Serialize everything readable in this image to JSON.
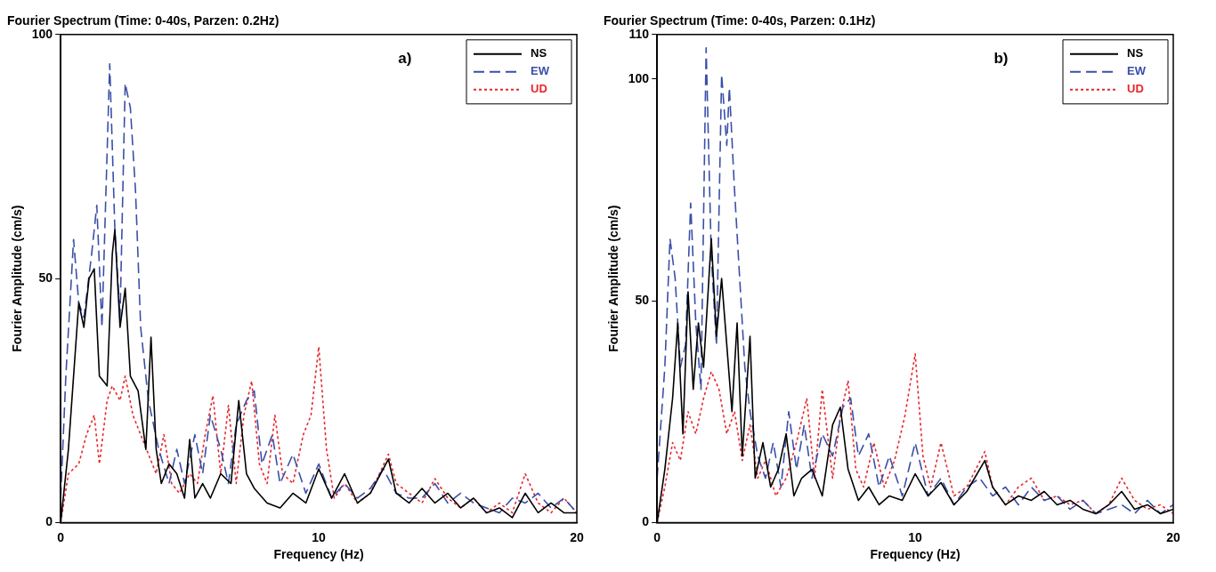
{
  "chart_data": [
    {
      "type": "line",
      "title": "Fourier Spectrum (Time: 0-40s, Parzen: 0.2Hz)",
      "xlabel": "Frequency (Hz)",
      "ylabel": "Fourier Amplitude (cm/s)",
      "annotations": [
        "a)"
      ],
      "xlim": [
        0,
        20
      ],
      "xticks": [
        0,
        10,
        20
      ],
      "ylim": [
        0,
        100
      ],
      "yticks": [
        0,
        50,
        100
      ],
      "grid": false,
      "legend": "top right",
      "marker": "none",
      "series": [
        {
          "name": "NS",
          "color": "#000000",
          "line_style": "solid",
          "x": [
            0,
            0.3,
            0.7,
            0.9,
            1.1,
            1.3,
            1.5,
            1.8,
            2.0,
            2.1,
            2.3,
            2.5,
            2.7,
            3.0,
            3.3,
            3.5,
            3.7,
            3.9,
            4.2,
            4.5,
            4.8,
            5.0,
            5.2,
            5.5,
            5.8,
            6.2,
            6.6,
            6.9,
            7.2,
            7.5,
            8,
            8.5,
            9,
            9.5,
            10,
            10.5,
            11,
            11.5,
            12,
            12.7,
            13,
            13.5,
            14,
            14.5,
            15,
            15.5,
            16,
            16.5,
            17,
            17.5,
            18,
            18.5,
            19,
            19.5,
            20
          ],
          "values": [
            0,
            15,
            45,
            40,
            50,
            52,
            30,
            28,
            55,
            60,
            40,
            48,
            30,
            27,
            15,
            38,
            15,
            8,
            12,
            10,
            5,
            17,
            5,
            8,
            5,
            10,
            8,
            25,
            10,
            7,
            4,
            3,
            6,
            4,
            11,
            5,
            10,
            4,
            6,
            13,
            6,
            4,
            7,
            4,
            6,
            3,
            5,
            2,
            3,
            1,
            6,
            2,
            4,
            2,
            2
          ]
        },
        {
          "name": "EW",
          "color": "#3a4fa8",
          "line_style": "dashed",
          "x": [
            0,
            0.2,
            0.5,
            0.7,
            0.9,
            1.2,
            1.4,
            1.6,
            1.9,
            2.1,
            2.3,
            2.5,
            2.7,
            2.9,
            3.1,
            3.4,
            3.6,
            3.8,
            4.2,
            4.5,
            4.8,
            5.2,
            5.5,
            5.8,
            6.2,
            6.5,
            6.8,
            7.2,
            7.5,
            7.8,
            8.2,
            8.5,
            9,
            9.5,
            10,
            10.5,
            11,
            11.5,
            12,
            12.5,
            13,
            13.5,
            14,
            14.5,
            15,
            15.5,
            16,
            16.5,
            17,
            17.5,
            18,
            18.5,
            19,
            19.5,
            20
          ],
          "values": [
            5,
            30,
            58,
            45,
            42,
            55,
            65,
            40,
            94,
            60,
            42,
            90,
            85,
            68,
            40,
            25,
            20,
            15,
            8,
            15,
            8,
            18,
            10,
            22,
            15,
            8,
            20,
            25,
            27,
            12,
            18,
            8,
            14,
            6,
            12,
            5,
            8,
            5,
            7,
            11,
            6,
            5,
            5,
            8,
            4,
            6,
            4,
            3,
            2,
            5,
            4,
            6,
            3,
            5,
            2
          ]
        },
        {
          "name": "UD",
          "color": "#e8262a",
          "line_style": "dotted",
          "x": [
            0,
            0.3,
            0.7,
            1.0,
            1.3,
            1.5,
            1.8,
            2.0,
            2.3,
            2.5,
            2.8,
            3.1,
            3.4,
            3.7,
            4.0,
            4.3,
            4.6,
            5.0,
            5.3,
            5.6,
            5.9,
            6.2,
            6.5,
            6.8,
            7.1,
            7.4,
            7.7,
            8.0,
            8.3,
            8.6,
            9.0,
            9.4,
            9.7,
            10.0,
            10.3,
            10.6,
            11,
            11.5,
            12,
            12.7,
            13,
            13.5,
            14,
            14.5,
            15,
            15.5,
            16,
            16.5,
            17,
            17.5,
            18,
            18.5,
            19,
            19.5,
            20
          ],
          "values": [
            0,
            10,
            12,
            18,
            22,
            12,
            25,
            28,
            25,
            30,
            22,
            18,
            14,
            10,
            18,
            8,
            6,
            10,
            8,
            18,
            26,
            10,
            24,
            8,
            22,
            29,
            12,
            8,
            22,
            10,
            8,
            18,
            22,
            36,
            15,
            5,
            8,
            4,
            6,
            14,
            8,
            6,
            4,
            9,
            5,
            3,
            5,
            2,
            4,
            2,
            10,
            4,
            2,
            5,
            2
          ]
        }
      ]
    },
    {
      "type": "line",
      "title": "Fourier Spectrum (Time: 0-40s, Parzen: 0.1Hz)",
      "xlabel": "Frequency (Hz)",
      "ylabel": "Fourier Amplitude (cm/s)",
      "annotations": [
        "b)"
      ],
      "xlim": [
        0,
        20
      ],
      "xticks": [
        0,
        10,
        20
      ],
      "ylim": [
        0,
        110
      ],
      "yticks": [
        0,
        50,
        100,
        110
      ],
      "grid": false,
      "legend": "top right",
      "marker": "none",
      "series": [
        {
          "name": "NS",
          "color": "#000000",
          "line_style": "solid",
          "x": [
            0,
            0.3,
            0.6,
            0.8,
            1.0,
            1.2,
            1.4,
            1.6,
            1.8,
            2.1,
            2.3,
            2.5,
            2.7,
            2.9,
            3.1,
            3.3,
            3.6,
            3.8,
            4.1,
            4.4,
            4.7,
            5.0,
            5.3,
            5.6,
            6.0,
            6.4,
            6.8,
            7.1,
            7.4,
            7.8,
            8.2,
            8.6,
            9,
            9.5,
            10,
            10.5,
            11,
            11.5,
            12,
            12.7,
            13,
            13.5,
            14,
            14.5,
            15,
            15.5,
            16,
            16.5,
            17,
            17.5,
            18,
            18.5,
            19,
            19.5,
            20
          ],
          "values": [
            0,
            12,
            28,
            45,
            20,
            52,
            30,
            45,
            35,
            64,
            42,
            55,
            40,
            25,
            45,
            15,
            42,
            10,
            18,
            8,
            12,
            20,
            6,
            10,
            12,
            6,
            22,
            26,
            12,
            5,
            8,
            4,
            6,
            5,
            11,
            6,
            9,
            4,
            7,
            14,
            8,
            4,
            6,
            5,
            7,
            4,
            5,
            3,
            2,
            4,
            7,
            3,
            4,
            2,
            3
          ]
        },
        {
          "name": "EW",
          "color": "#3a4fa8",
          "line_style": "dashed",
          "x": [
            0,
            0.3,
            0.5,
            0.7,
            0.9,
            1.1,
            1.3,
            1.5,
            1.7,
            1.9,
            2.1,
            2.3,
            2.5,
            2.7,
            2.8,
            3.0,
            3.2,
            3.4,
            3.6,
            3.9,
            4.2,
            4.5,
            4.8,
            5.1,
            5.4,
            5.7,
            6.0,
            6.4,
            6.8,
            7.2,
            7.5,
            7.8,
            8.2,
            8.6,
            9,
            9.5,
            10,
            10.5,
            11,
            11.5,
            12,
            12.5,
            13,
            13.5,
            14,
            14.5,
            15,
            15.5,
            16,
            16.5,
            17,
            17.5,
            18,
            18.5,
            19,
            19.5,
            20
          ],
          "values": [
            10,
            35,
            64,
            55,
            35,
            40,
            72,
            45,
            30,
            107,
            60,
            40,
            101,
            85,
            98,
            75,
            55,
            35,
            25,
            15,
            10,
            18,
            8,
            25,
            12,
            22,
            10,
            20,
            15,
            26,
            28,
            15,
            20,
            8,
            15,
            6,
            18,
            6,
            10,
            4,
            8,
            10,
            6,
            8,
            4,
            8,
            5,
            6,
            3,
            5,
            2,
            3,
            4,
            2,
            5,
            2,
            4
          ]
        },
        {
          "name": "UD",
          "color": "#e8262a",
          "line_style": "dotted",
          "x": [
            0,
            0.3,
            0.6,
            0.9,
            1.2,
            1.5,
            1.8,
            2.1,
            2.4,
            2.7,
            3.0,
            3.3,
            3.6,
            3.9,
            4.2,
            4.6,
            5.0,
            5.4,
            5.8,
            6.1,
            6.4,
            6.8,
            7.1,
            7.4,
            7.7,
            8.0,
            8.4,
            8.8,
            9.2,
            9.6,
            10.0,
            10.3,
            10.6,
            11,
            11.5,
            12,
            12.7,
            13,
            13.5,
            14,
            14.5,
            15,
            15.5,
            16,
            16.5,
            17,
            17.5,
            18,
            18.5,
            19,
            19.5,
            20
          ],
          "values": [
            0,
            8,
            18,
            14,
            25,
            20,
            28,
            34,
            30,
            20,
            25,
            14,
            22,
            10,
            14,
            6,
            10,
            18,
            28,
            10,
            30,
            10,
            24,
            32,
            12,
            8,
            18,
            8,
            14,
            24,
            38,
            15,
            8,
            18,
            6,
            8,
            16,
            8,
            4,
            8,
            10,
            5,
            6,
            4,
            5,
            2,
            4,
            10,
            5,
            3,
            4,
            2
          ]
        }
      ]
    }
  ]
}
